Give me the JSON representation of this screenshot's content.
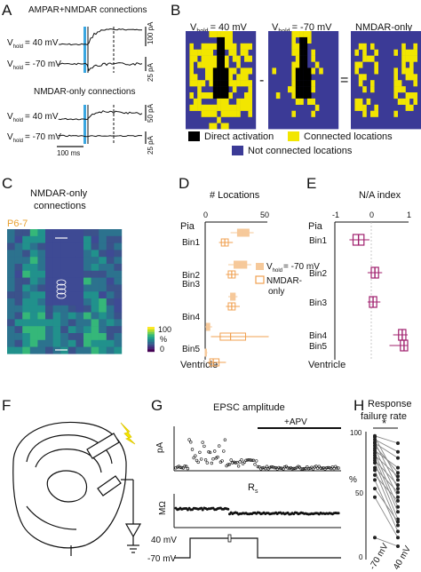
{
  "panels": {
    "A": {
      "letter": "A",
      "top_title": "AMPAR+NMDAR connections",
      "bottom_title": "NMDAR-only connections",
      "vhold_pos": "= 40 mV",
      "vhold_neg": "= -70 mV",
      "v_main": "V",
      "v_sub": "hold",
      "scale_top_pos": "100 pA",
      "scale_top_neg": "25 pA",
      "scale_bot_pos": "50 pA",
      "scale_bot_neg": "25 pA",
      "time_scale": "100 ms"
    },
    "B": {
      "letter": "B",
      "label_pos": "= 40 mV",
      "label_neg": "= -70 mV",
      "label_nmdar": "NMDAR-only",
      "v_main": "V",
      "v_sub": "hold",
      "minus": "-",
      "equals": "=",
      "legend_direct": "Direct activation",
      "legend_connected": "Connected locations",
      "legend_not": "Not connected locations",
      "colors": {
        "navy": "#3b3a96",
        "yellow": "#f2e600",
        "black": "#000000"
      }
    },
    "C": {
      "letter": "C",
      "title_line1": "NMDAR-only",
      "title_line2": "connections",
      "age": "P6-7",
      "colorbar_top": "100",
      "colorbar_unit": "%",
      "colorbar_bottom": "0"
    },
    "D": {
      "letter": "D",
      "title": "# Locations",
      "tick0": "0",
      "tick50": "50",
      "pia": "Pia",
      "ventricle": "Ventricle",
      "bins": [
        "Bin1",
        "Bin2",
        "Bin3",
        "Bin4",
        "Bin5"
      ],
      "legend_vhold": "= -70 mV",
      "legend_v": "V",
      "legend_vsub": "hold",
      "legend_nmdar_1": "NMDAR-",
      "legend_nmdar_2": "only",
      "colors": {
        "filled": "#f6c99a",
        "outline": "#f0a050"
      }
    },
    "E": {
      "letter": "E",
      "title": "N/A index",
      "ticks": [
        "-1",
        "0",
        "1"
      ],
      "pia": "Pia",
      "ventricle": "Ventricle",
      "bins": [
        "Bin1",
        "Bin2",
        "Bin3",
        "Bin4",
        "Bin5"
      ],
      "color": "#a0206e"
    },
    "F": {
      "letter": "F"
    },
    "G": {
      "letter": "G",
      "title": "EPSC amplitude",
      "apv": "+APV",
      "ylabel_pa": "pA",
      "ylabel_mohm": "MΩ",
      "rs_main": "R",
      "rs_sub": "s",
      "v_top": "40 mV",
      "v_bottom": "-70 mV"
    },
    "H": {
      "letter": "H",
      "title_line1": "Response",
      "title_line2": "failure rate",
      "star": "*",
      "ylabel": "%",
      "ytick_top": "100",
      "ytick_mid": "50",
      "ytick_bottom": "0",
      "xlabel_1": "-70 mV",
      "xlabel_2": "40 mV",
      "pairs": [
        [
          98,
          92
        ],
        [
          97,
          62
        ],
        [
          95,
          85
        ],
        [
          93,
          55
        ],
        [
          92,
          80
        ],
        [
          90,
          68
        ],
        [
          88,
          48
        ],
        [
          86,
          72
        ],
        [
          84,
          40
        ],
        [
          82,
          65
        ],
        [
          80,
          36
        ],
        [
          78,
          58
        ],
        [
          76,
          30
        ],
        [
          72,
          52
        ],
        [
          70,
          25
        ],
        [
          66,
          45
        ],
        [
          62,
          20
        ],
        [
          55,
          28
        ],
        [
          48,
          15
        ],
        [
          15,
          8
        ]
      ]
    }
  }
}
